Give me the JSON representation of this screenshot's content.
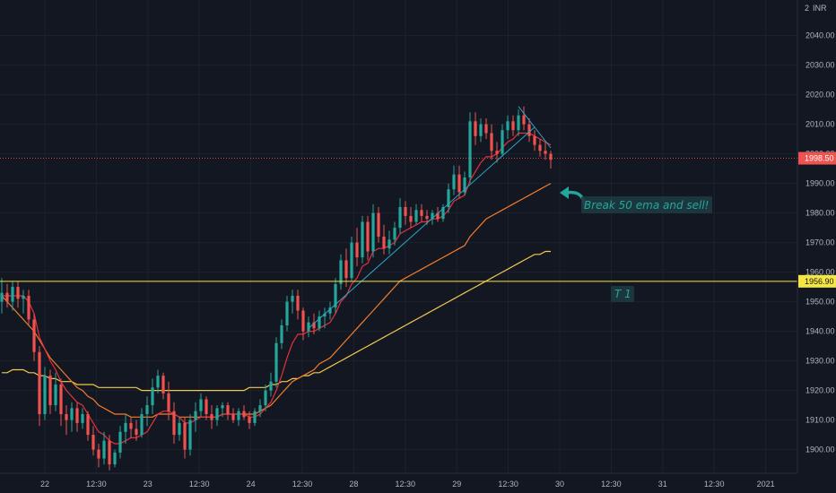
{
  "chart_data": {
    "type": "candlestick",
    "currency": "INR",
    "top_label": "2",
    "ylim": [
      1892,
      2052
    ],
    "y_ticks": [
      1900,
      1910,
      1920,
      1930,
      1940,
      1950,
      1960,
      1970,
      1980,
      1990,
      2000,
      2010,
      2020,
      2030,
      2040
    ],
    "x_labels": [
      "22",
      "12:30",
      "23",
      "12:30",
      "24",
      "12:30",
      "28",
      "12:30",
      "29",
      "12:30",
      "30",
      "12:30",
      "31",
      "12:30",
      "2021"
    ],
    "price_tag": "1998.50",
    "current_price": 1998.5,
    "level_tag": "1956.90",
    "level": 1956.9,
    "colors": {
      "up": "#26a69a",
      "down": "#ef5350",
      "ema_fast": "#e5303c",
      "ema_mid": "#f57c2a",
      "ema_slow": "#f2c94c",
      "trendline": "#2aa8c9",
      "level": "#f5e642",
      "background": "#131722"
    },
    "annotations": [
      {
        "text": "Break 50 ema and sell!"
      },
      {
        "text": "T 1"
      }
    ],
    "candles": [
      {
        "o": 1950,
        "h": 1958,
        "l": 1946,
        "c": 1953
      },
      {
        "o": 1953,
        "h": 1956,
        "l": 1948,
        "c": 1950
      },
      {
        "o": 1950,
        "h": 1957,
        "l": 1947,
        "c": 1955
      },
      {
        "o": 1955,
        "h": 1957,
        "l": 1948,
        "c": 1951
      },
      {
        "o": 1951,
        "h": 1954,
        "l": 1946,
        "c": 1952
      },
      {
        "o": 1952,
        "h": 1954,
        "l": 1942,
        "c": 1944
      },
      {
        "o": 1944,
        "h": 1946,
        "l": 1930,
        "c": 1933
      },
      {
        "o": 1933,
        "h": 1935,
        "l": 1908,
        "c": 1912
      },
      {
        "o": 1912,
        "h": 1928,
        "l": 1910,
        "c": 1925
      },
      {
        "o": 1925,
        "h": 1927,
        "l": 1912,
        "c": 1915
      },
      {
        "o": 1915,
        "h": 1926,
        "l": 1913,
        "c": 1922
      },
      {
        "o": 1922,
        "h": 1924,
        "l": 1908,
        "c": 1912
      },
      {
        "o": 1912,
        "h": 1915,
        "l": 1905,
        "c": 1910
      },
      {
        "o": 1910,
        "h": 1916,
        "l": 1906,
        "c": 1914
      },
      {
        "o": 1914,
        "h": 1916,
        "l": 1906,
        "c": 1909
      },
      {
        "o": 1909,
        "h": 1914,
        "l": 1907,
        "c": 1912
      },
      {
        "o": 1912,
        "h": 1913,
        "l": 1903,
        "c": 1905
      },
      {
        "o": 1905,
        "h": 1908,
        "l": 1898,
        "c": 1900
      },
      {
        "o": 1900,
        "h": 1902,
        "l": 1894,
        "c": 1897
      },
      {
        "o": 1897,
        "h": 1906,
        "l": 1895,
        "c": 1903
      },
      {
        "o": 1903,
        "h": 1905,
        "l": 1893,
        "c": 1895
      },
      {
        "o": 1895,
        "h": 1900,
        "l": 1894,
        "c": 1899
      },
      {
        "o": 1899,
        "h": 1908,
        "l": 1897,
        "c": 1906
      },
      {
        "o": 1906,
        "h": 1912,
        "l": 1902,
        "c": 1909
      },
      {
        "o": 1909,
        "h": 1911,
        "l": 1904,
        "c": 1907
      },
      {
        "o": 1907,
        "h": 1910,
        "l": 1903,
        "c": 1905
      },
      {
        "o": 1905,
        "h": 1914,
        "l": 1904,
        "c": 1912
      },
      {
        "o": 1912,
        "h": 1918,
        "l": 1908,
        "c": 1915
      },
      {
        "o": 1915,
        "h": 1924,
        "l": 1912,
        "c": 1921
      },
      {
        "o": 1921,
        "h": 1927,
        "l": 1919,
        "c": 1925
      },
      {
        "o": 1925,
        "h": 1926,
        "l": 1917,
        "c": 1919
      },
      {
        "o": 1919,
        "h": 1923,
        "l": 1910,
        "c": 1913
      },
      {
        "o": 1913,
        "h": 1916,
        "l": 1902,
        "c": 1905
      },
      {
        "o": 1905,
        "h": 1911,
        "l": 1903,
        "c": 1909
      },
      {
        "o": 1909,
        "h": 1911,
        "l": 1897,
        "c": 1900
      },
      {
        "o": 1900,
        "h": 1912,
        "l": 1898,
        "c": 1910
      },
      {
        "o": 1910,
        "h": 1916,
        "l": 1906,
        "c": 1913
      },
      {
        "o": 1913,
        "h": 1919,
        "l": 1911,
        "c": 1917
      },
      {
        "o": 1917,
        "h": 1918,
        "l": 1910,
        "c": 1912
      },
      {
        "o": 1912,
        "h": 1915,
        "l": 1907,
        "c": 1910
      },
      {
        "o": 1910,
        "h": 1915,
        "l": 1908,
        "c": 1914
      },
      {
        "o": 1914,
        "h": 1916,
        "l": 1911,
        "c": 1915
      },
      {
        "o": 1915,
        "h": 1916,
        "l": 1910,
        "c": 1912
      },
      {
        "o": 1912,
        "h": 1914,
        "l": 1909,
        "c": 1910
      },
      {
        "o": 1910,
        "h": 1914,
        "l": 1908,
        "c": 1913
      },
      {
        "o": 1913,
        "h": 1915,
        "l": 1910,
        "c": 1911
      },
      {
        "o": 1911,
        "h": 1913,
        "l": 1907,
        "c": 1909
      },
      {
        "o": 1909,
        "h": 1914,
        "l": 1908,
        "c": 1913
      },
      {
        "o": 1913,
        "h": 1917,
        "l": 1911,
        "c": 1915
      },
      {
        "o": 1915,
        "h": 1922,
        "l": 1913,
        "c": 1920
      },
      {
        "o": 1920,
        "h": 1926,
        "l": 1918,
        "c": 1923
      },
      {
        "o": 1923,
        "h": 1938,
        "l": 1921,
        "c": 1936
      },
      {
        "o": 1936,
        "h": 1944,
        "l": 1934,
        "c": 1942
      },
      {
        "o": 1942,
        "h": 1952,
        "l": 1940,
        "c": 1950
      },
      {
        "o": 1950,
        "h": 1954,
        "l": 1946,
        "c": 1952
      },
      {
        "o": 1952,
        "h": 1954,
        "l": 1944,
        "c": 1947
      },
      {
        "o": 1947,
        "h": 1948,
        "l": 1937,
        "c": 1940
      },
      {
        "o": 1940,
        "h": 1945,
        "l": 1938,
        "c": 1943
      },
      {
        "o": 1943,
        "h": 1946,
        "l": 1939,
        "c": 1941
      },
      {
        "o": 1941,
        "h": 1947,
        "l": 1940,
        "c": 1945
      },
      {
        "o": 1945,
        "h": 1948,
        "l": 1941,
        "c": 1946
      },
      {
        "o": 1946,
        "h": 1950,
        "l": 1944,
        "c": 1948
      },
      {
        "o": 1948,
        "h": 1958,
        "l": 1946,
        "c": 1956
      },
      {
        "o": 1956,
        "h": 1966,
        "l": 1954,
        "c": 1964
      },
      {
        "o": 1964,
        "h": 1968,
        "l": 1955,
        "c": 1958
      },
      {
        "o": 1958,
        "h": 1972,
        "l": 1957,
        "c": 1970
      },
      {
        "o": 1970,
        "h": 1975,
        "l": 1962,
        "c": 1965
      },
      {
        "o": 1965,
        "h": 1979,
        "l": 1963,
        "c": 1977
      },
      {
        "o": 1977,
        "h": 1979,
        "l": 1964,
        "c": 1967
      },
      {
        "o": 1967,
        "h": 1983,
        "l": 1965,
        "c": 1980
      },
      {
        "o": 1980,
        "h": 1982,
        "l": 1970,
        "c": 1972
      },
      {
        "o": 1972,
        "h": 1976,
        "l": 1966,
        "c": 1968
      },
      {
        "o": 1968,
        "h": 1974,
        "l": 1966,
        "c": 1971
      },
      {
        "o": 1971,
        "h": 1977,
        "l": 1969,
        "c": 1975
      },
      {
        "o": 1975,
        "h": 1985,
        "l": 1973,
        "c": 1982
      },
      {
        "o": 1982,
        "h": 1984,
        "l": 1976,
        "c": 1979
      },
      {
        "o": 1979,
        "h": 1982,
        "l": 1975,
        "c": 1977
      },
      {
        "o": 1977,
        "h": 1983,
        "l": 1976,
        "c": 1981
      },
      {
        "o": 1981,
        "h": 1983,
        "l": 1977,
        "c": 1979
      },
      {
        "o": 1979,
        "h": 1981,
        "l": 1976,
        "c": 1978
      },
      {
        "o": 1978,
        "h": 1981,
        "l": 1976,
        "c": 1980
      },
      {
        "o": 1980,
        "h": 1982,
        "l": 1977,
        "c": 1978
      },
      {
        "o": 1978,
        "h": 1983,
        "l": 1977,
        "c": 1982
      },
      {
        "o": 1982,
        "h": 1990,
        "l": 1980,
        "c": 1988
      },
      {
        "o": 1988,
        "h": 1996,
        "l": 1986,
        "c": 1993
      },
      {
        "o": 1993,
        "h": 1996,
        "l": 1985,
        "c": 1987
      },
      {
        "o": 1987,
        "h": 1994,
        "l": 1986,
        "c": 1992
      },
      {
        "o": 1992,
        "h": 2014,
        "l": 1990,
        "c": 2011
      },
      {
        "o": 2011,
        "h": 2014,
        "l": 2003,
        "c": 2006
      },
      {
        "o": 2006,
        "h": 2012,
        "l": 2004,
        "c": 2010
      },
      {
        "o": 2010,
        "h": 2012,
        "l": 2005,
        "c": 2007
      },
      {
        "o": 2007,
        "h": 2010,
        "l": 1998,
        "c": 2001
      },
      {
        "o": 2001,
        "h": 2004,
        "l": 1997,
        "c": 2000
      },
      {
        "o": 2000,
        "h": 2010,
        "l": 1999,
        "c": 2008
      },
      {
        "o": 2008,
        "h": 2013,
        "l": 2005,
        "c": 2011
      },
      {
        "o": 2011,
        "h": 2013,
        "l": 2006,
        "c": 2008
      },
      {
        "o": 2008,
        "h": 2015,
        "l": 2006,
        "c": 2013
      },
      {
        "o": 2013,
        "h": 2016,
        "l": 2008,
        "c": 2010
      },
      {
        "o": 2010,
        "h": 2012,
        "l": 2004,
        "c": 2006
      },
      {
        "o": 2006,
        "h": 2008,
        "l": 2001,
        "c": 2003
      },
      {
        "o": 2003,
        "h": 2005,
        "l": 1999,
        "c": 2001
      },
      {
        "o": 2001,
        "h": 2004,
        "l": 1998,
        "c": 2000
      },
      {
        "o": 2000,
        "h": 2001,
        "l": 1995,
        "c": 1998
      }
    ],
    "ema_fast": [
      1952,
      1952,
      1952,
      1952,
      1952,
      1950,
      1946,
      1938,
      1934,
      1930,
      1927,
      1923,
      1920,
      1918,
      1916,
      1915,
      1912,
      1909,
      1906,
      1905,
      1903,
      1902,
      1902,
      1903,
      1904,
      1904,
      1905,
      1906,
      1909,
      1912,
      1913,
      1913,
      1912,
      1911,
      1909,
      1909,
      1910,
      1911,
      1911,
      1911,
      1911,
      1912,
      1912,
      1912,
      1912,
      1912,
      1911,
      1911,
      1912,
      1914,
      1916,
      1920,
      1925,
      1931,
      1936,
      1939,
      1939,
      1940,
      1940,
      1941,
      1942,
      1943,
      1946,
      1950,
      1952,
      1956,
      1958,
      1962,
      1963,
      1967,
      1968,
      1968,
      1969,
      1970,
      1973,
      1974,
      1975,
      1976,
      1977,
      1977,
      1978,
      1978,
      1979,
      1981,
      1984,
      1985,
      1986,
      1991,
      1994,
      1997,
      1999,
      1999,
      2000,
      2002,
      2004,
      2005,
      2007,
      2007,
      2007,
      2006,
      2005,
      2004,
      2003
    ],
    "ema_mid": [
      1952,
      1950,
      1948,
      1946,
      1944,
      1942,
      1940,
      1937,
      1934,
      1931,
      1929,
      1927,
      1925,
      1923,
      1921,
      1920,
      1918,
      1917,
      1915,
      1914,
      1913,
      1912,
      1912,
      1912,
      1911,
      1911,
      1911,
      1911,
      1911,
      1912,
      1912,
      1912,
      1912,
      1911,
      1911,
      1911,
      1911,
      1911,
      1911,
      1911,
      1911,
      1912,
      1912,
      1912,
      1912,
      1912,
      1912,
      1912,
      1913,
      1914,
      1915,
      1917,
      1919,
      1921,
      1923,
      1924,
      1925,
      1926,
      1927,
      1929,
      1930,
      1931,
      1933,
      1935,
      1937,
      1939,
      1941,
      1943,
      1945,
      1947,
      1949,
      1951,
      1953,
      1955,
      1957,
      1958,
      1959,
      1960,
      1961,
      1962,
      1963,
      1964,
      1965,
      1966,
      1967,
      1968,
      1969,
      1972,
      1974,
      1976,
      1978,
      1979,
      1980,
      1981,
      1982,
      1983,
      1984,
      1985,
      1986,
      1987,
      1988,
      1989,
      1990
    ],
    "ema_slow": [
      1926,
      1926,
      1927,
      1927,
      1927,
      1926,
      1926,
      1925,
      1925,
      1924,
      1924,
      1923,
      1923,
      1923,
      1922,
      1922,
      1922,
      1922,
      1921,
      1921,
      1921,
      1921,
      1921,
      1921,
      1921,
      1921,
      1920,
      1920,
      1920,
      1920,
      1920,
      1920,
      1920,
      1920,
      1920,
      1920,
      1920,
      1920,
      1920,
      1920,
      1920,
      1920,
      1920,
      1920,
      1920,
      1920,
      1921,
      1921,
      1921,
      1921,
      1922,
      1922,
      1923,
      1923,
      1924,
      1924,
      1925,
      1925,
      1926,
      1926,
      1927,
      1928,
      1929,
      1930,
      1931,
      1932,
      1933,
      1934,
      1935,
      1936,
      1937,
      1938,
      1939,
      1940,
      1941,
      1942,
      1943,
      1944,
      1945,
      1946,
      1947,
      1948,
      1949,
      1950,
      1951,
      1952,
      1953,
      1954,
      1955,
      1956,
      1957,
      1958,
      1959,
      1960,
      1961,
      1962,
      1963,
      1964,
      1965,
      1966,
      1966,
      1967,
      1967
    ],
    "trendlines": [
      {
        "from": [
          57,
          1941
        ],
        "to": [
          99,
          2009
        ]
      },
      {
        "from": [
          96,
          2016
        ],
        "to": [
          102,
          2002
        ]
      }
    ]
  }
}
